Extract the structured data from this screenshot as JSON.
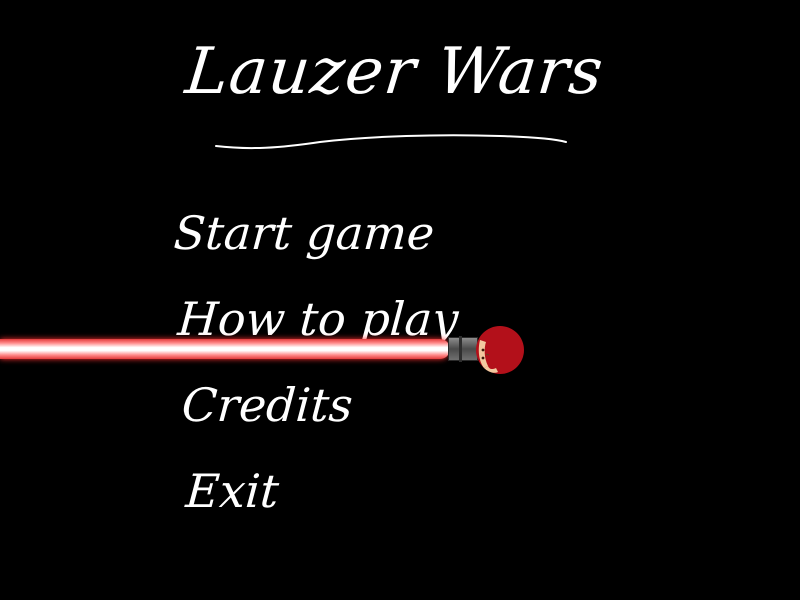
{
  "game": {
    "title": "Lauzer Wars"
  },
  "menu": {
    "items": [
      {
        "label": "Start game"
      },
      {
        "label": "How to play"
      },
      {
        "label": "Credits"
      },
      {
        "label": "Exit"
      }
    ],
    "selected_index": 1
  },
  "cursor": {
    "icon": "lightsaber-cursor-icon",
    "blade_color": "#e23b3b",
    "head_color": "#b3101a"
  },
  "colors": {
    "background": "#000000",
    "text": "#ffffff"
  }
}
